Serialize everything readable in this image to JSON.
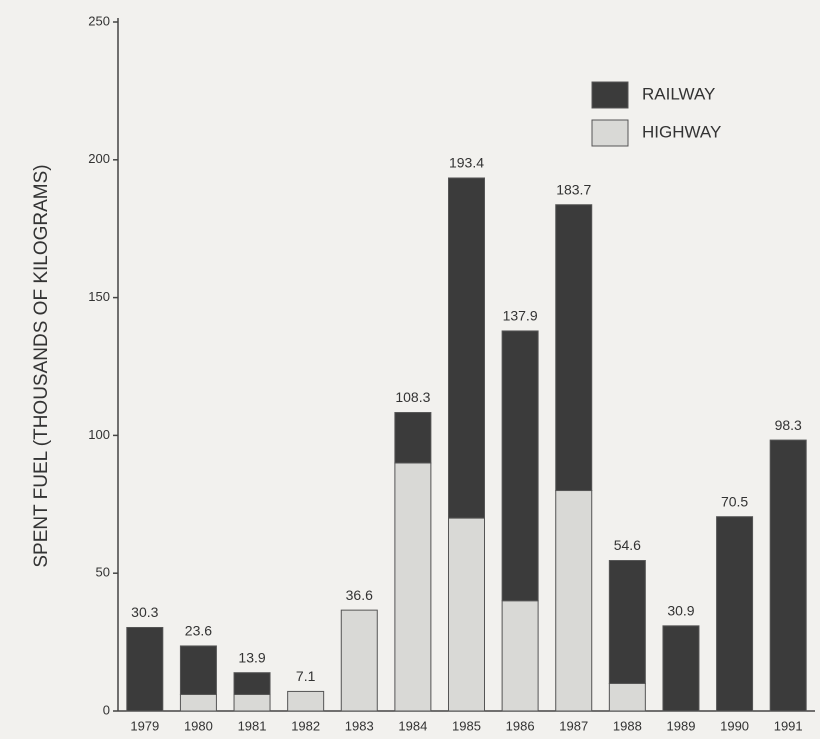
{
  "chart_data": {
    "type": "stacked-bar",
    "y_label": "SPENT FUEL (THOUSANDS OF KILOGRAMS)",
    "categories": [
      "1979",
      "1980",
      "1981",
      "1982",
      "1983",
      "1984",
      "1985",
      "1986",
      "1987",
      "1988",
      "1989",
      "1990",
      "1991"
    ],
    "series": [
      {
        "name": "RAILWAY",
        "color": "#3b3b3b",
        "values": [
          30.3,
          17.6,
          7.9,
          0,
          0,
          18.3,
          123.4,
          97.9,
          103.7,
          44.6,
          30.9,
          70.5,
          98.3
        ]
      },
      {
        "name": "HIGHWAY",
        "color": "#d9d9d6",
        "values": [
          0,
          6,
          6,
          7.1,
          36.6,
          90,
          70,
          40,
          80,
          10,
          0,
          0,
          0
        ]
      }
    ],
    "totals": [
      30.3,
      23.6,
      13.9,
      7.1,
      36.6,
      108.3,
      193.4,
      137.9,
      183.7,
      54.6,
      30.9,
      70.5,
      98.3
    ],
    "ylim": [
      0,
      250
    ],
    "yticks": [
      0,
      50,
      100,
      150,
      200,
      250
    ],
    "legend": "top-right"
  }
}
